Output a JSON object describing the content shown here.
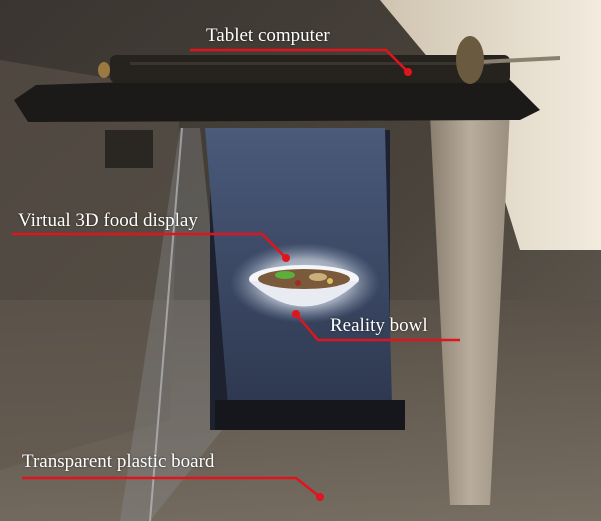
{
  "annotations": {
    "tablet_computer": "Tablet computer",
    "virtual_food_display": "Virtual 3D food display",
    "reality_bowl": "Reality bowl",
    "transparent_plastic_board": "Transparent plastic board"
  },
  "colors": {
    "annotation_line": "#e0141c",
    "annotation_text": "#ffffff",
    "background_dark": "#2a2622",
    "wall_light": "#e8e0d0",
    "tablet_body": "#1c1a18",
    "screen_blue": "#3c4a66"
  }
}
